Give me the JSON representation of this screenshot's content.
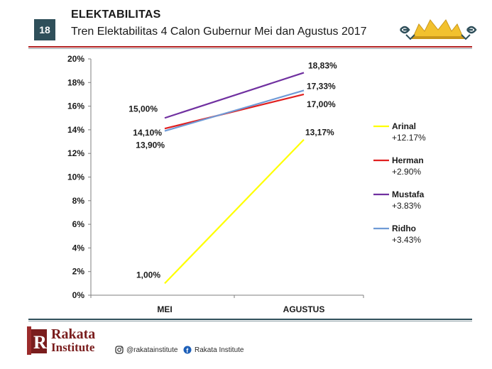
{
  "header": {
    "slide_number": "18",
    "title": "ELEKTABILITAS",
    "subtitle": "Tren Elektabilitas 4 Calon Gubernur Mei dan Agustus 2017"
  },
  "footer": {
    "brand_line1": "Rakata",
    "brand_line2": "Institute",
    "instagram": "@rakatainstitute",
    "facebook": "Rakata Institute"
  },
  "colors": {
    "accent": "#b22222",
    "header_box": "#2f4f5a"
  },
  "chart_data": {
    "type": "line",
    "title": "",
    "xlabel": "",
    "ylabel": "",
    "categories": [
      "MEI",
      "AGUSTUS"
    ],
    "ylim": [
      0,
      20
    ],
    "yticks": [
      "0%",
      "2%",
      "4%",
      "6%",
      "8%",
      "10%",
      "12%",
      "14%",
      "16%",
      "18%",
      "20%"
    ],
    "grid": false,
    "legend_position": "right",
    "series": [
      {
        "name": "Arinal",
        "values": [
          1.0,
          13.17
        ],
        "labels": [
          "1,00%",
          "13,17%"
        ],
        "change": "+12.17%",
        "color": "#ffff00"
      },
      {
        "name": "Herman",
        "values": [
          14.1,
          17.0
        ],
        "labels": [
          "14,10%",
          "17,00%"
        ],
        "change": "+2.90%",
        "color": "#e02020"
      },
      {
        "name": "Mustafa",
        "values": [
          15.0,
          18.83
        ],
        "labels": [
          "15,00%",
          "18,83%"
        ],
        "change": "+3.83%",
        "color": "#7030a0"
      },
      {
        "name": "Ridho",
        "values": [
          13.9,
          17.33
        ],
        "labels": [
          "13,90%",
          "17,33%"
        ],
        "change": "+3.43%",
        "color": "#6f9ad6"
      }
    ]
  }
}
